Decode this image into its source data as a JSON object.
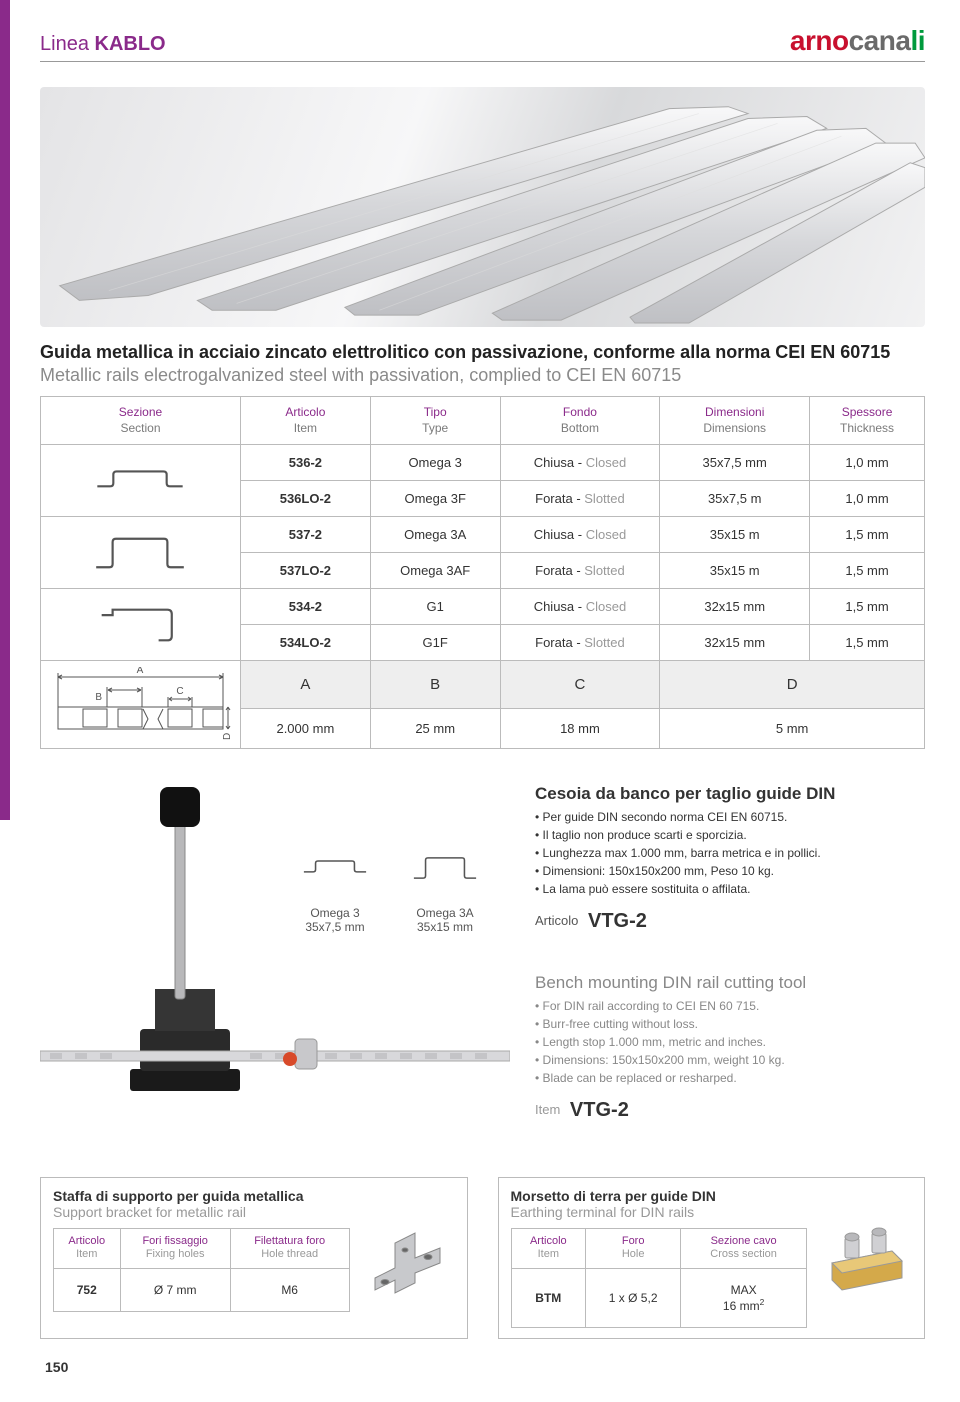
{
  "header": {
    "line_prefix": "Linea",
    "line_name": "KABLO",
    "logo_p1": "arno",
    "logo_p2": "cana",
    "logo_p3": "li"
  },
  "titles": {
    "it": "Guida metallica in acciaio zincato elettrolitico con passivazione, conforme alla norma CEI EN 60715",
    "en": "Metallic rails electrogalvanized steel with passivation, complied to CEI EN 60715"
  },
  "table1": {
    "headers": [
      {
        "it": "Sezione",
        "en": "Section"
      },
      {
        "it": "Articolo",
        "en": "Item"
      },
      {
        "it": "Tipo",
        "en": "Type"
      },
      {
        "it": "Fondo",
        "en": "Bottom"
      },
      {
        "it": "Dimensioni",
        "en": "Dimensions"
      },
      {
        "it": "Spessore",
        "en": "Thickness"
      }
    ],
    "groups": [
      {
        "profile": "omega3",
        "rows": [
          {
            "art": "536-2",
            "type": "Omega 3",
            "bot_it": "Chiusa",
            "bot_en": "Closed",
            "dim": "35x7,5 mm",
            "thk": "1,0 mm"
          },
          {
            "art": "536LO-2",
            "type": "Omega 3F",
            "bot_it": "Forata",
            "bot_en": "Slotted",
            "dim": "35x7,5 m",
            "thk": "1,0 mm"
          }
        ]
      },
      {
        "profile": "omega3a",
        "rows": [
          {
            "art": "537-2",
            "type": "Omega 3A",
            "bot_it": "Chiusa",
            "bot_en": "Closed",
            "dim": "35x15 m",
            "thk": "1,5 mm"
          },
          {
            "art": "537LO-2",
            "type": "Omega 3AF",
            "bot_it": "Forata",
            "bot_en": "Slotted",
            "dim": "35x15 m",
            "thk": "1,5 mm"
          }
        ]
      },
      {
        "profile": "g1",
        "rows": [
          {
            "art": "534-2",
            "type": "G1",
            "bot_it": "Chiusa",
            "bot_en": "Closed",
            "dim": "32x15 mm",
            "thk": "1,5 mm"
          },
          {
            "art": "534LO-2",
            "type": "G1F",
            "bot_it": "Forata",
            "bot_en": "Slotted",
            "dim": "32x15 mm",
            "thk": "1,5 mm"
          }
        ]
      }
    ],
    "dim_labels": [
      "A",
      "B",
      "C",
      "D"
    ],
    "dim_values": [
      "2.000 mm",
      "25 mm",
      "18 mm",
      "5 mm"
    ]
  },
  "cutter": {
    "profiles": [
      {
        "name": "Omega 3",
        "size": "35x7,5 mm",
        "shape": "omega3"
      },
      {
        "name": "Omega 3A",
        "size": "35x15 mm",
        "shape": "omega3a"
      }
    ],
    "it": {
      "title": "Cesoia da banco per taglio guide DIN",
      "bullets": [
        "Per guide DIN secondo norma CEI EN 60715.",
        "Il taglio non produce scarti e sporcizia.",
        "Lunghezza max 1.000 mm, barra metrica e in pollici.",
        "Dimensioni: 150x150x200 mm, Peso 10 kg.",
        "La lama può essere sostituita o affilata."
      ],
      "art_label": "Articolo",
      "art_code": "VTG-2"
    },
    "en": {
      "title": "Bench mounting DIN rail cutting tool",
      "bullets": [
        "For DIN rail according to CEI EN 60 715.",
        "Burr-free cutting without loss.",
        "Length stop 1.000 mm, metric and inches.",
        "Dimensions: 150x150x200 mm, weight 10 kg.",
        "Blade can be replaced or resharped."
      ],
      "art_label": "Item",
      "art_code": "VTG-2"
    }
  },
  "bracket": {
    "title_it": "Staffa di supporto per guida metallica",
    "title_en": "Support bracket for metallic rail",
    "headers": [
      {
        "it": "Articolo",
        "en": "Item"
      },
      {
        "it": "Fori fissaggio",
        "en": "Fixing holes"
      },
      {
        "it": "Filettatura foro",
        "en": "Hole thread"
      }
    ],
    "row": {
      "art": "752",
      "holes": "Ø 7 mm",
      "thread": "M6"
    }
  },
  "earthing": {
    "title_it": "Morsetto di terra per guide DIN",
    "title_en": "Earthing terminal for DIN rails",
    "headers": [
      {
        "it": "Articolo",
        "en": "Item"
      },
      {
        "it": "Foro",
        "en": "Hole"
      },
      {
        "it": "Sezione cavo",
        "en": "Cross section"
      }
    ],
    "row": {
      "art": "BTM",
      "hole": "1 x Ø 5,2",
      "cross_pre": "MAX",
      "cross_val": "16 mm",
      "cross_sup": "2"
    }
  },
  "page_number": "150"
}
